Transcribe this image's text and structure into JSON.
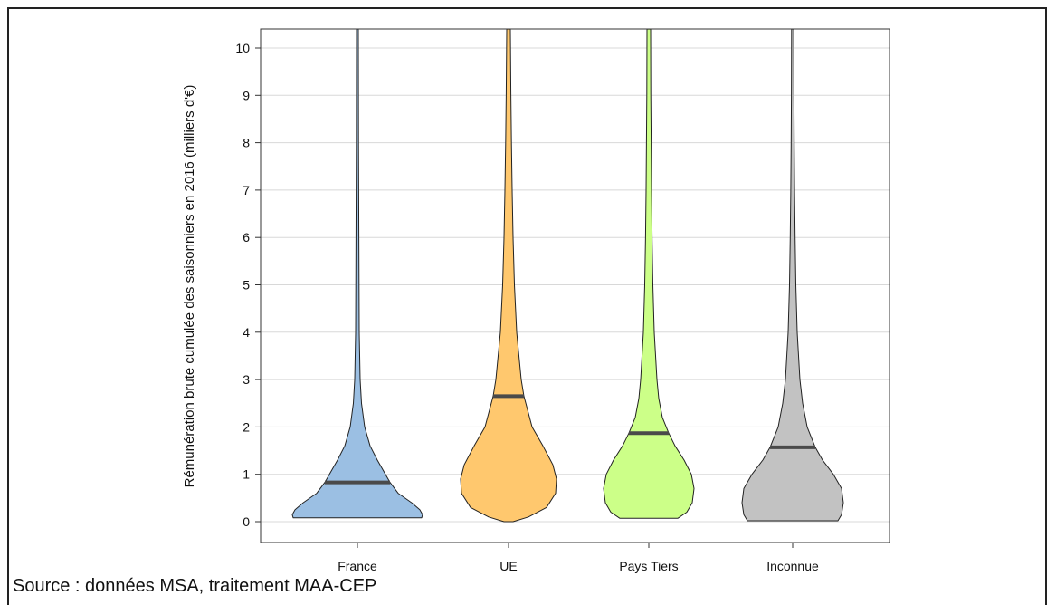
{
  "chart_data": {
    "type": "violin",
    "categories": [
      "France",
      "UE",
      "Pays Tiers",
      "Inconnue"
    ],
    "ylabel": "Rémunération brute cumulée des saisonniers en 2016 (milliers d'€)",
    "yticks": [
      0,
      1,
      2,
      3,
      4,
      5,
      6,
      7,
      8,
      9,
      10
    ],
    "ylim": [
      -0.3,
      10.4
    ],
    "grid": true,
    "series": [
      {
        "category": "France",
        "color": "#9bbfe3",
        "median": 0.83,
        "profile": [
          [
            0.08,
            0.71
          ],
          [
            0.15,
            0.72
          ],
          [
            0.25,
            0.69
          ],
          [
            0.4,
            0.6
          ],
          [
            0.6,
            0.45
          ],
          [
            0.83,
            0.36
          ],
          [
            1.0,
            0.31
          ],
          [
            1.3,
            0.22
          ],
          [
            1.6,
            0.14
          ],
          [
            2.0,
            0.08
          ],
          [
            2.5,
            0.045
          ],
          [
            3.0,
            0.03
          ],
          [
            4.0,
            0.02
          ],
          [
            6.0,
            0.016
          ],
          [
            8.0,
            0.012
          ],
          [
            10.4,
            0.01
          ]
        ]
      },
      {
        "category": "UE",
        "color": "#ffc86e",
        "median": 2.65,
        "profile": [
          [
            0.0,
            0.05
          ],
          [
            0.1,
            0.22
          ],
          [
            0.3,
            0.42
          ],
          [
            0.6,
            0.52
          ],
          [
            0.9,
            0.53
          ],
          [
            1.2,
            0.49
          ],
          [
            1.6,
            0.38
          ],
          [
            2.0,
            0.26
          ],
          [
            2.65,
            0.17
          ],
          [
            3.0,
            0.14
          ],
          [
            4.0,
            0.09
          ],
          [
            5.0,
            0.065
          ],
          [
            6.0,
            0.05
          ],
          [
            7.0,
            0.04
          ],
          [
            8.0,
            0.032
          ],
          [
            9.0,
            0.026
          ],
          [
            10.4,
            0.02
          ]
        ]
      },
      {
        "category": "Pays Tiers",
        "color": "#ccff88",
        "median": 1.87,
        "profile": [
          [
            0.07,
            0.32
          ],
          [
            0.2,
            0.42
          ],
          [
            0.4,
            0.48
          ],
          [
            0.7,
            0.5
          ],
          [
            1.0,
            0.47
          ],
          [
            1.3,
            0.39
          ],
          [
            1.6,
            0.29
          ],
          [
            1.87,
            0.22
          ],
          [
            2.2,
            0.15
          ],
          [
            2.6,
            0.11
          ],
          [
            3.0,
            0.09
          ],
          [
            4.0,
            0.06
          ],
          [
            5.0,
            0.045
          ],
          [
            6.0,
            0.036
          ],
          [
            7.0,
            0.03
          ],
          [
            8.0,
            0.026
          ],
          [
            9.0,
            0.022
          ],
          [
            10.4,
            0.02
          ]
        ]
      },
      {
        "category": "Inconnue",
        "color": "#c2c2c2",
        "median": 1.57,
        "profile": [
          [
            0.02,
            0.5
          ],
          [
            0.15,
            0.54
          ],
          [
            0.4,
            0.56
          ],
          [
            0.7,
            0.54
          ],
          [
            1.0,
            0.45
          ],
          [
            1.3,
            0.33
          ],
          [
            1.57,
            0.25
          ],
          [
            2.0,
            0.16
          ],
          [
            2.5,
            0.11
          ],
          [
            3.0,
            0.08
          ],
          [
            4.0,
            0.05
          ],
          [
            5.0,
            0.035
          ],
          [
            6.0,
            0.027
          ],
          [
            7.0,
            0.021
          ],
          [
            8.0,
            0.017
          ],
          [
            9.0,
            0.014
          ],
          [
            10.4,
            0.012
          ]
        ]
      }
    ]
  },
  "source": "Source : données MSA, traitement MAA-CEP"
}
